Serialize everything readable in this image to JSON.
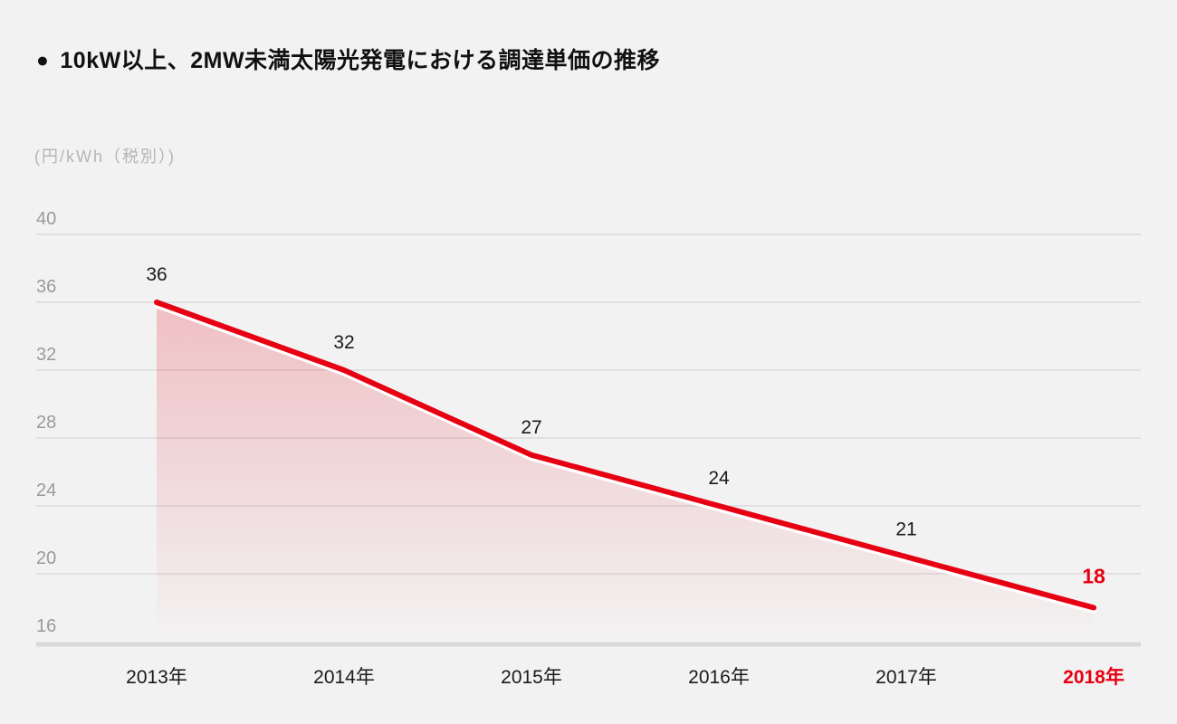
{
  "page": {
    "background": "#f2f2f2"
  },
  "header": {
    "bullet": "●",
    "title": "10kW以上、2MW未満太陽光発電における調達単価の推移"
  },
  "chart_data": {
    "type": "area",
    "title": "10kW以上、2MW未満太陽光発電における調達単価の推移",
    "unit_label": "(円/kWh（税別）)",
    "categories": [
      "2013年",
      "2014年",
      "2015年",
      "2016年",
      "2017年",
      "2018年"
    ],
    "values": [
      36,
      32,
      27,
      24,
      21,
      18
    ],
    "ylim": [
      16,
      40
    ],
    "yticks": [
      40,
      36,
      32,
      28,
      24,
      20,
      16
    ],
    "grid": true,
    "legend": false,
    "highlight_index": 5,
    "colors": {
      "line": "#e60012",
      "line_underlay": "#ffffff",
      "area_fill": "#e60012",
      "area_top_opacity": "0.21",
      "area_bottom_opacity": "0",
      "grid": "#e0e0e0",
      "axis": "#d9d9d9",
      "tick_label": "#9a9a9a",
      "data_label": "#1a1a1a",
      "x_label": "#1a1a1a",
      "highlight": "#e60012",
      "title_text": "#111111",
      "unit_text": "#b5b5b5"
    }
  }
}
